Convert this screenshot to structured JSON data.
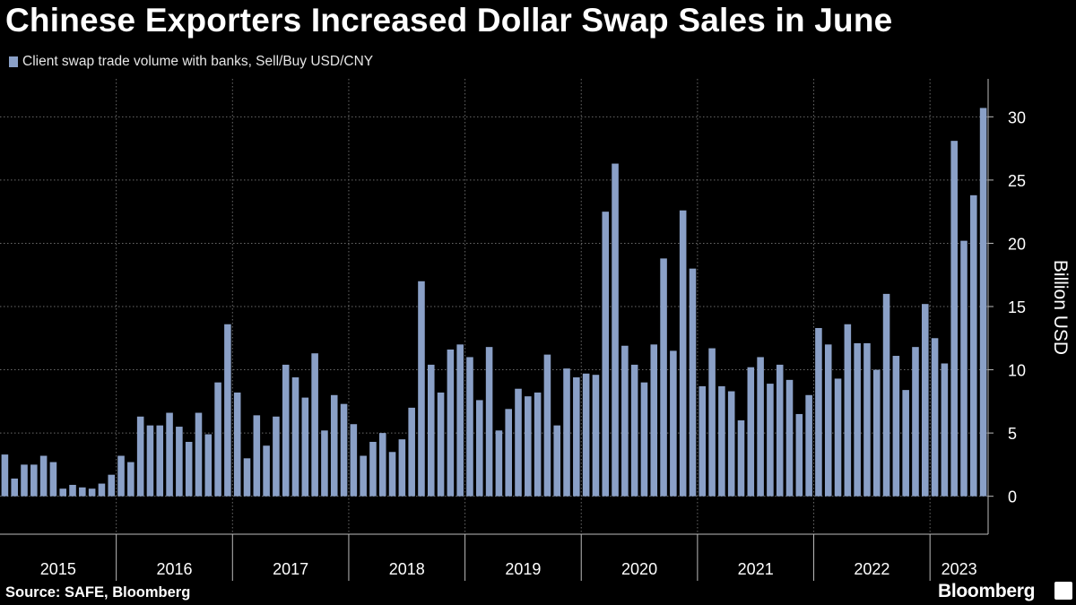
{
  "header": {
    "title": "Chinese Exporters Increased Dollar Swap Sales in June"
  },
  "footer": {
    "source": "Source: SAFE, Bloomberg",
    "brand": "Bloomberg"
  },
  "colors": {
    "bar": "#8aa0c7",
    "grid": "#6a6a6a",
    "background": "#000000",
    "text": "#ffffff"
  },
  "chart_data": {
    "type": "bar",
    "title": "Chinese Exporters Increased Dollar Swap Sales in June",
    "legend": [
      "Client swap trade volume with banks, Sell/Buy USD/CNY"
    ],
    "legend_position": "top-left",
    "xlabel": "",
    "ylabel": "Billion USD",
    "ylim": [
      -3,
      33
    ],
    "yticks": [
      0,
      5,
      10,
      15,
      20,
      25,
      30
    ],
    "grid": true,
    "x_start": "2015-01",
    "x_end": "2023-06",
    "year_labels": [
      "2015",
      "2016",
      "2017",
      "2018",
      "2019",
      "2020",
      "2021",
      "2022",
      "2023"
    ],
    "series": [
      {
        "name": "Client swap trade volume with banks, Sell/Buy USD/CNY",
        "values": [
          3.3,
          1.4,
          2.5,
          2.5,
          3.2,
          2.7,
          0.6,
          0.9,
          0.7,
          0.6,
          1.0,
          1.7,
          3.2,
          2.7,
          6.3,
          5.6,
          5.6,
          6.6,
          5.5,
          4.3,
          6.6,
          4.9,
          9.0,
          13.6,
          8.2,
          3.0,
          6.4,
          4.0,
          6.3,
          10.4,
          9.4,
          7.8,
          11.3,
          5.2,
          8.0,
          7.3,
          5.7,
          3.2,
          4.3,
          5.0,
          3.5,
          4.5,
          7.0,
          17.0,
          10.4,
          8.2,
          11.6,
          12.0,
          11.0,
          7.6,
          11.8,
          5.2,
          6.9,
          8.5,
          7.9,
          8.2,
          11.2,
          5.6,
          10.1,
          9.4,
          9.7,
          9.6,
          22.5,
          26.3,
          11.9,
          10.4,
          9.0,
          12.0,
          18.8,
          11.5,
          22.6,
          18.0,
          8.7,
          11.7,
          8.7,
          8.3,
          6.0,
          10.2,
          11.0,
          8.9,
          10.4,
          9.2,
          6.5,
          8.0,
          13.3,
          12.0,
          9.3,
          13.6,
          12.1,
          12.1,
          10.0,
          16.0,
          11.1,
          8.4,
          11.8,
          15.2,
          12.5,
          10.5,
          28.1,
          20.2,
          23.8,
          30.7
        ]
      }
    ]
  }
}
